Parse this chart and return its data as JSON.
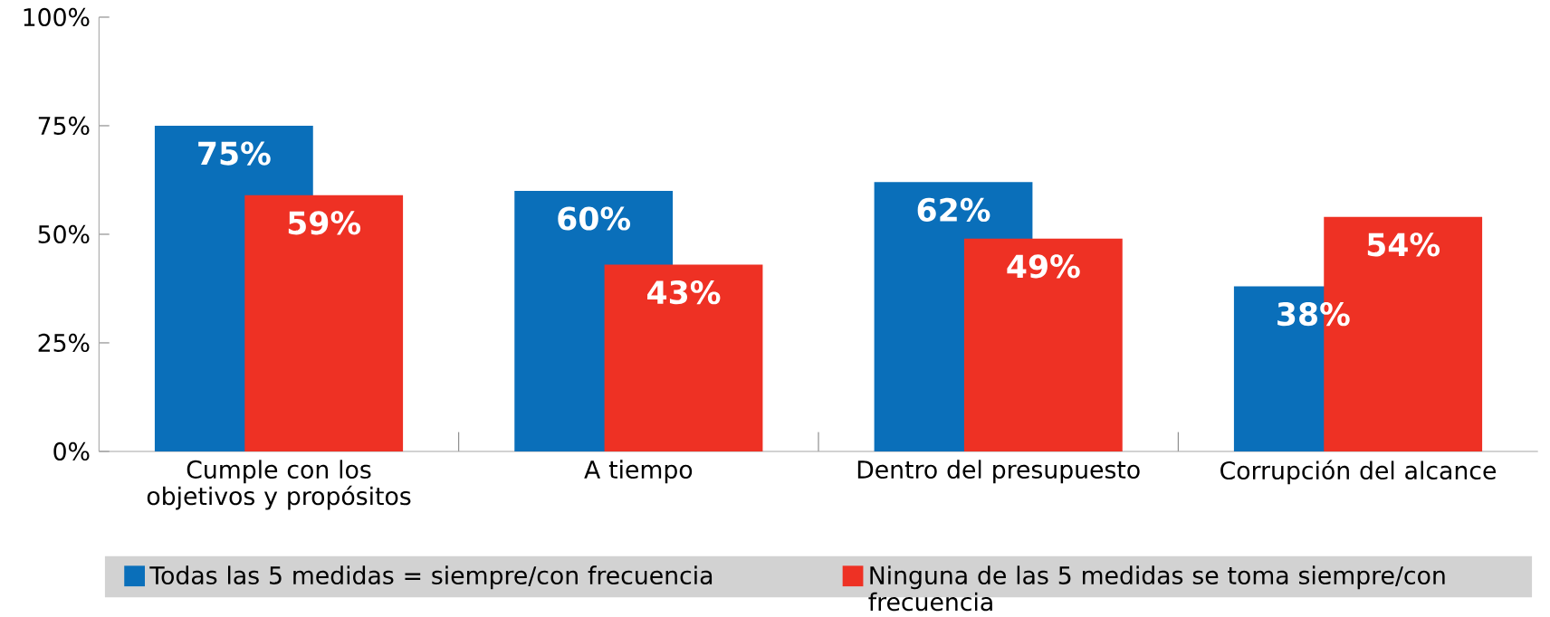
{
  "chart_data": {
    "type": "bar",
    "categories": [
      "Cumple con los objetivos y propósitos",
      "A tiempo",
      "Dentro del presupuesto",
      "Corrupción del alcance"
    ],
    "series": [
      {
        "name": "Todas las 5 medidas = siempre/con frecuencia",
        "color": "#0a6fba",
        "values": [
          75,
          60,
          62,
          38
        ],
        "value_labels": [
          "75%",
          "60%",
          "62%",
          "38%"
        ]
      },
      {
        "name": "Ninguna de las 5 medidas se toma siempre/con frecuencia",
        "color": "#ee3124",
        "values": [
          59,
          43,
          49,
          54
        ],
        "value_labels": [
          "59%",
          "43%",
          "49%",
          "54%"
        ]
      }
    ],
    "ylim": [
      0,
      100
    ],
    "yticks": [
      {
        "value": 0,
        "label": "0%"
      },
      {
        "value": 25,
        "label": "25%"
      },
      {
        "value": 50,
        "label": "50%"
      },
      {
        "value": 75,
        "label": "75%"
      },
      {
        "value": 100,
        "label": "100%"
      }
    ],
    "legend": "bottom",
    "grid": false
  }
}
